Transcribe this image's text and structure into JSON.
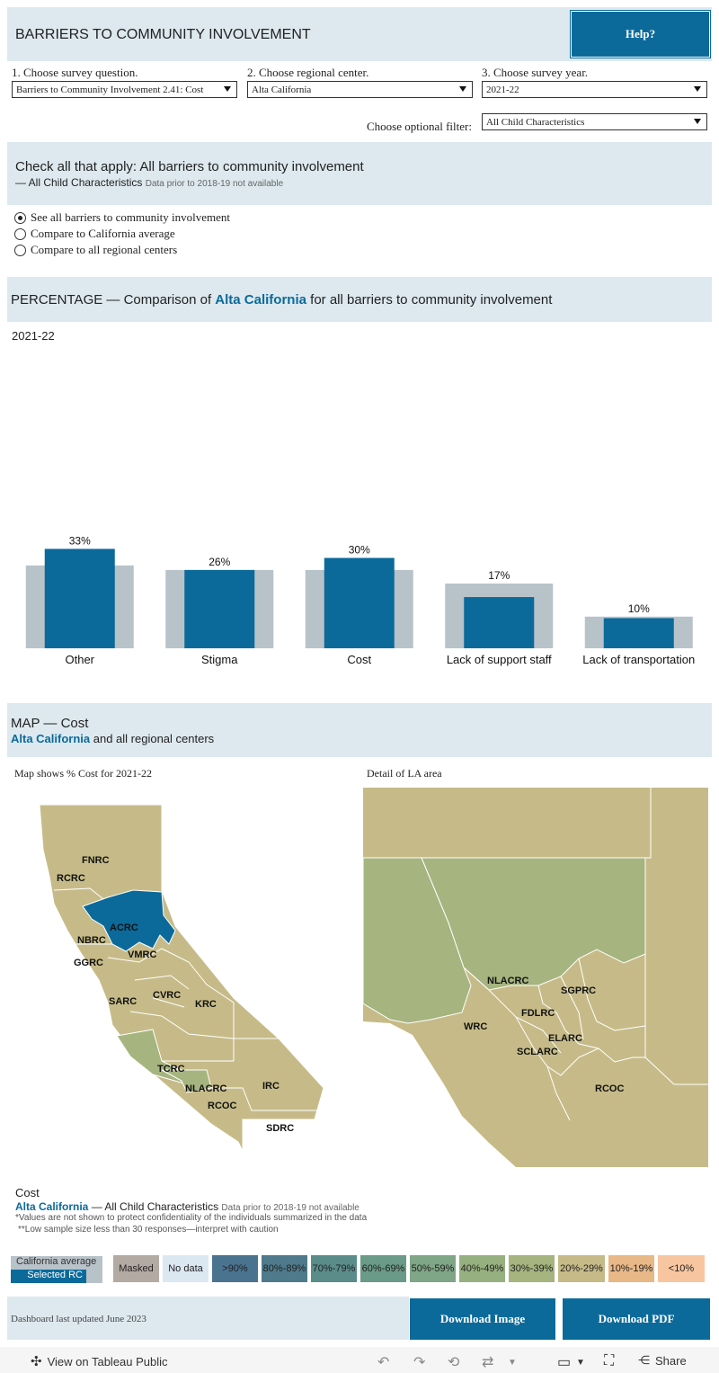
{
  "header": {
    "title": "BARRIERS TO COMMUNITY INVOLVEMENT",
    "help_label": "Help?"
  },
  "controls": {
    "q1_label": "1. Choose survey question.",
    "q1_value": "Barriers to Community Involvement 2.41: Cost",
    "q2_label": "2. Choose regional center.",
    "q2_value": "Alta California",
    "q3_label": "3. Choose survey year.",
    "q3_value": "2021-22",
    "filter_label": "Choose optional filter:",
    "filter_value": "All Child Characteristics"
  },
  "question_band": {
    "title": "Check all that apply: All barriers to community involvement",
    "subtitle": "— All Child Characteristics",
    "note": "Data prior to 2018-19 not available"
  },
  "view_options": [
    {
      "label": "See all barriers to community involvement",
      "selected": true
    },
    {
      "label": "Compare to California average",
      "selected": false
    },
    {
      "label": "Compare to all regional centers",
      "selected": false
    }
  ],
  "percentage_band": {
    "prefix": "PERCENTAGE — Comparison of ",
    "rc": "Alta California",
    "suffix": " for all barriers to community involvement"
  },
  "chart_year": "2021-22",
  "chart_data": {
    "type": "bar",
    "categories": [
      "Other",
      "Stigma",
      "Cost",
      "Lack of support staff",
      "Lack of transportation"
    ],
    "series": [
      {
        "name": "Selected RC",
        "values": [
          33,
          26,
          30,
          17,
          10
        ],
        "color": "#0b6a9a"
      },
      {
        "name": "California average",
        "values": [
          27.5,
          26,
          26,
          21.5,
          10.5
        ],
        "color": "#b8c2c9"
      }
    ],
    "data_labels": [
      "33%",
      "26%",
      "30%",
      "17%",
      "10%"
    ],
    "ylim": [
      0,
      100
    ]
  },
  "map_band": {
    "title": "MAP — Cost",
    "rc": "Alta California",
    "suffix": " and all regional centers"
  },
  "map": {
    "left_caption": "Map shows % Cost for 2021-22",
    "right_caption": "Detail of LA area",
    "state_labels": [
      "FNRC",
      "RCRC",
      "ACRC",
      "NBRC",
      "VMRC",
      "GGRC",
      "SARC",
      "CVRC",
      "KRC",
      "TCRC",
      "NLACRC",
      "IRC",
      "RCOC",
      "SDRC"
    ],
    "detail_labels": [
      "NLACRC",
      "SGPRC",
      "FDLRC",
      "WRC",
      "ELARC",
      "SCLARC",
      "RCOC"
    ],
    "colors": {
      "tan": "#c6bb88",
      "green": "#a6b47f",
      "selected": "#0b6a9a",
      "water": "#ffffff"
    }
  },
  "footnotes": {
    "heading": "Cost",
    "rc": "Alta California",
    "subtitle": " — All Child Characteristics",
    "note": "Data prior to 2018-19 not available",
    "line1": "*Values are not shown to protect confidentiality of the individuals summarized in the data",
    "line2": "**Low sample size less than 30 responses—interpret with caution"
  },
  "legend": {
    "ca_average": "California average",
    "selected_rc": "Selected RC",
    "cells": [
      {
        "label": "Masked",
        "color": "#b3aaa3"
      },
      {
        "label": "No data",
        "color": "#dbe8f2"
      },
      {
        "label": ">90%",
        "color": "#4a7390"
      },
      {
        "label": "80%-89%",
        "color": "#4f7a8b"
      },
      {
        "label": "70%-79%",
        "color": "#5a8c8a"
      },
      {
        "label": "60%-69%",
        "color": "#6a9a88"
      },
      {
        "label": "50%-59%",
        "color": "#7fa686"
      },
      {
        "label": "40%-49%",
        "color": "#97b07f"
      },
      {
        "label": "30%-39%",
        "color": "#a6b47f"
      },
      {
        "label": "20%-29%",
        "color": "#c6bb88"
      },
      {
        "label": "10%-19%",
        "color": "#e8b887"
      },
      {
        "label": "<10%",
        "color": "#f7c6a0"
      }
    ]
  },
  "bottom": {
    "updated": "Dashboard last updated June 2023",
    "download_image": "Download Image",
    "download_pdf": "Download PDF"
  },
  "toolbar": {
    "view_on": "View on Tableau Public",
    "share": "Share"
  }
}
